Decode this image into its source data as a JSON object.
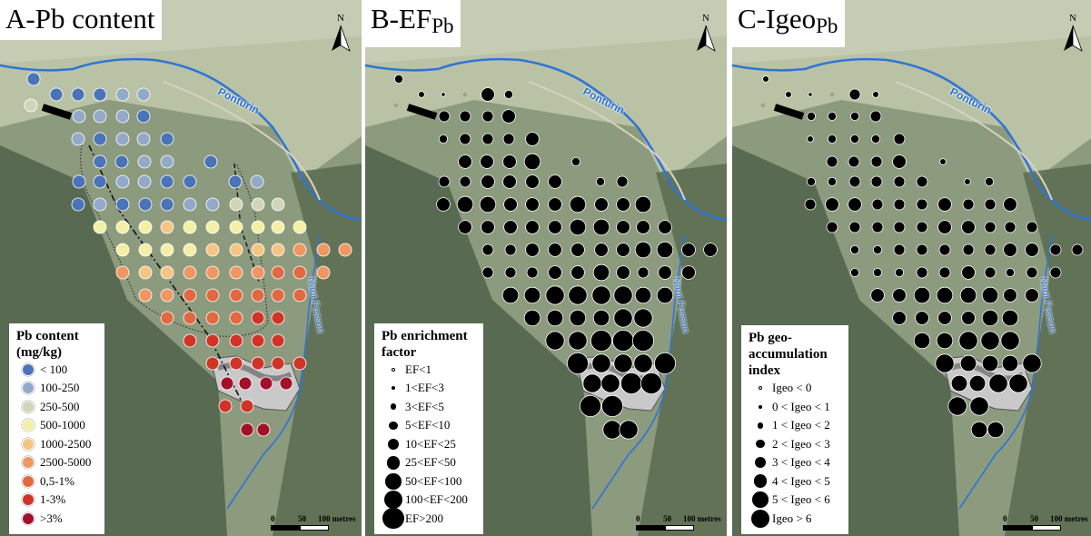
{
  "north_label": "N",
  "rivers": {
    "main": "Ponturin",
    "side": "Nant Fesson"
  },
  "scale_labels": [
    "0",
    "50",
    "100 metres"
  ],
  "panels": [
    {
      "title": "A-Pb content",
      "legend": {
        "title_lines": [
          "Pb content",
          "(mg/kg)"
        ],
        "items": [
          {
            "label": "< 100",
            "color": "#4a73b8"
          },
          {
            "label": "100-250",
            "color": "#93a9c8"
          },
          {
            "label": "250-500",
            "color": "#cfd6b8"
          },
          {
            "label": "500-1000",
            "color": "#f3f0a6"
          },
          {
            "label": "1000-2500",
            "color": "#f6c583"
          },
          {
            "label": "2500-5000",
            "color": "#ee9760"
          },
          {
            "label": "0,5-1%",
            "color": "#e16840"
          },
          {
            "label": "1-3%",
            "color": "#d03426"
          },
          {
            "label": ">3%",
            "color": "#a3102a"
          }
        ]
      }
    },
    {
      "title": "B-EF",
      "title_sub": "Pb",
      "legend": {
        "title_lines": [
          "Pb enrichment",
          "factor"
        ],
        "items": [
          {
            "label": "EF<1",
            "size": 1
          },
          {
            "label": "1<EF<3",
            "size": 2
          },
          {
            "label": "3<EF<5",
            "size": 3
          },
          {
            "label": "5<EF<10",
            "size": 4
          },
          {
            "label": "10<EF<25",
            "size": 5
          },
          {
            "label": "25<EF<50",
            "size": 6
          },
          {
            "label": "50<EF<100",
            "size": 7
          },
          {
            "label": "100<EF<200",
            "size": 8
          },
          {
            "label": "EF>200",
            "size": 9
          }
        ]
      }
    },
    {
      "title": "C-Igeo",
      "title_sub": "Pb",
      "legend": {
        "title_lines": [
          "Pb geo-",
          "accumulation",
          "index"
        ],
        "items": [
          {
            "label": "Igeo < 0",
            "size": 1
          },
          {
            "label": "0 < Igeo < 1",
            "size": 2
          },
          {
            "label": "1 < Igeo < 2",
            "size": 3
          },
          {
            "label": "2 < Igeo < 3",
            "size": 4
          },
          {
            "label": "3 < Igeo < 4",
            "size": 5
          },
          {
            "label": "4 < Igeo < 5",
            "size": 6
          },
          {
            "label": "5 < Igeo < 6",
            "size": 7
          },
          {
            "label": "Igeo > 6",
            "size": 8
          }
        ]
      }
    }
  ],
  "samples": [
    [
      1,
      1,
      1,
      1,
      3,
      2,
      2,
      2,
      2,
      2,
      1,
      2,
      1,
      1,
      2,
      2,
      1,
      1,
      2,
      2,
      1,
      1,
      2,
      2,
      1,
      1,
      1,
      2,
      1,
      1,
      1,
      2,
      1,
      1,
      2,
      2,
      3,
      3,
      3,
      4,
      4,
      4,
      5,
      4,
      4,
      4,
      4,
      4,
      4,
      4,
      4,
      4,
      4,
      5,
      5,
      5,
      5,
      6,
      6,
      6,
      6,
      5,
      5,
      6,
      6,
      6,
      6,
      7,
      7,
      6,
      6,
      6,
      7,
      7,
      7,
      7,
      7,
      7,
      7,
      7,
      7,
      7,
      8,
      8,
      8,
      8,
      8,
      8,
      8,
      8,
      8,
      8,
      8,
      8,
      9,
      9,
      9,
      9,
      8,
      8,
      9,
      9
    ],
    [
      4,
      3,
      2,
      1,
      1,
      5,
      5,
      6,
      4,
      4,
      5,
      5,
      6,
      6,
      5,
      5,
      6,
      6,
      6,
      7,
      5,
      5,
      6,
      6,
      6,
      6,
      6,
      7,
      7,
      4,
      4,
      5,
      6,
      6,
      6,
      7,
      6,
      6,
      7,
      6,
      6,
      6,
      6,
      6,
      7,
      7,
      6,
      6,
      6,
      5,
      5,
      6,
      6,
      6,
      6,
      6,
      7,
      7,
      6,
      6,
      5,
      5,
      5,
      6,
      6,
      7,
      6,
      5,
      6,
      6,
      7,
      7,
      8,
      8,
      8,
      8,
      7,
      7,
      7,
      7,
      7,
      7,
      8,
      8,
      8,
      8,
      9,
      9,
      9,
      9,
      8,
      8,
      8,
      9,
      8,
      8,
      9,
      9,
      9,
      9,
      8,
      8
    ],
    [
      3,
      3,
      2,
      1,
      1,
      4,
      4,
      5,
      3,
      3,
      4,
      4,
      5,
      5,
      4,
      4,
      5,
      5,
      5,
      6,
      4,
      4,
      5,
      5,
      5,
      5,
      5,
      6,
      6,
      3,
      3,
      4,
      5,
      5,
      5,
      6,
      5,
      5,
      6,
      5,
      5,
      5,
      5,
      5,
      6,
      6,
      5,
      5,
      5,
      4,
      4,
      5,
      5,
      5,
      5,
      5,
      6,
      6,
      5,
      5,
      4,
      4,
      4,
      5,
      5,
      6,
      5,
      4,
      5,
      5,
      6,
      6,
      7,
      7,
      7,
      7,
      6,
      6,
      6,
      6,
      6,
      6,
      7,
      7,
      7,
      7,
      8,
      8,
      8,
      8,
      7,
      7,
      7,
      8,
      7,
      7,
      8,
      8,
      8,
      8,
      7,
      7
    ]
  ]
}
